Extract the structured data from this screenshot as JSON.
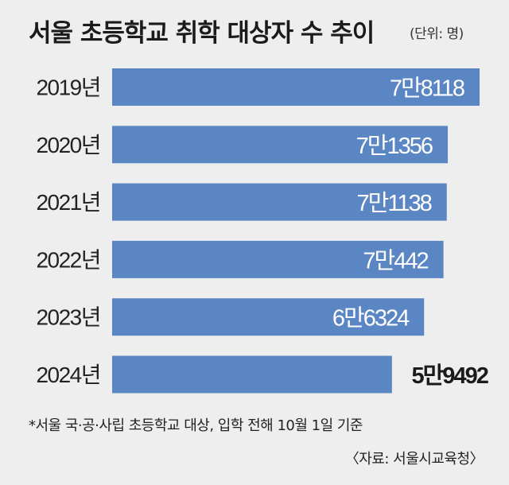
{
  "chart_data": {
    "type": "bar",
    "orientation": "horizontal",
    "title": "서울 초등학교 취학 대상자 수 추이",
    "unit_label": "(단위: 명)",
    "categories": [
      "2019년",
      "2020년",
      "2021년",
      "2022년",
      "2023년",
      "2024년"
    ],
    "values": [
      78118,
      71356,
      71138,
      70442,
      66324,
      59492
    ],
    "value_labels": [
      "7만8118",
      "7만1356",
      "7만1138",
      "7만442",
      "6만6324",
      "5만9492"
    ],
    "xlabel": "",
    "ylabel": "",
    "grid": false,
    "legend": "none",
    "bar_color": "#5b86c4",
    "last_label_color": "#1b1b1b"
  },
  "footnote": "*서울 국·공·사립 초등학교 대상, 입학 전해 10월 1일 기준",
  "source": "〈자료: 서울시교육청〉"
}
